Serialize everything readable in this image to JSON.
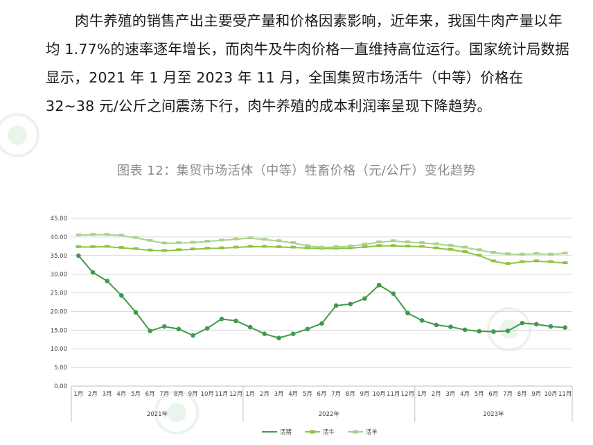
{
  "paragraph": "肉牛养殖的销售产出主要受产量和价格因素影响，近年来，我国牛肉产量以年均 1.77%的速率逐年增长，而肉牛及牛肉价格一直维持高位运行。国家统计局数据显示，2021 年 1 月至 2023 年 11 月，全国集贸市场活牛（中等）价格在 32~38 元/公斤之间震荡下行，肉牛养殖的成本利润率呈现下降趋势。",
  "chart_data": {
    "type": "line",
    "title": "图表 12：集贸市场活体（中等）牲畜价格（元/公斤）变化趋势",
    "ylim": [
      0,
      45
    ],
    "yticks": [
      "0.00",
      "5.00",
      "10.00",
      "15.00",
      "20.00",
      "25.00",
      "30.00",
      "35.00",
      "40.00",
      "45.00"
    ],
    "categories": [
      "1月",
      "2月",
      "3月",
      "4月",
      "5月",
      "6月",
      "7月",
      "8月",
      "9月",
      "10月",
      "11月",
      "12月",
      "1月",
      "2月",
      "3月",
      "4月",
      "5月",
      "6月",
      "7月",
      "8月",
      "9月",
      "10月",
      "11月",
      "12月",
      "1月",
      "2月",
      "3月",
      "4月",
      "5月",
      "6月",
      "7月",
      "8月",
      "9月",
      "10月",
      "11月"
    ],
    "year_groups": [
      {
        "label": "2021年",
        "count": 12
      },
      {
        "label": "2022年",
        "count": 12
      },
      {
        "label": "2023年",
        "count": 11
      }
    ],
    "legend_position": "bottom",
    "grid": true,
    "series": [
      {
        "name": "活猪",
        "color": "#3f9a4a",
        "values": [
          35.0,
          30.5,
          28.2,
          24.3,
          19.8,
          14.8,
          16.0,
          15.3,
          13.6,
          15.5,
          18.0,
          17.5,
          15.8,
          14.0,
          12.9,
          14.0,
          15.3,
          16.8,
          21.6,
          22.0,
          23.5,
          27.1,
          24.8,
          19.6,
          17.6,
          16.4,
          15.9,
          15.1,
          14.7,
          14.6,
          14.8,
          16.9,
          16.6,
          16.0,
          15.7
        ]
      },
      {
        "name": "活牛",
        "color": "#8cc63f",
        "values": [
          37.3,
          37.3,
          37.4,
          37.1,
          36.8,
          36.4,
          36.3,
          36.5,
          36.7,
          36.9,
          37.0,
          37.2,
          37.4,
          37.4,
          37.3,
          37.2,
          37.0,
          36.9,
          36.9,
          37.0,
          37.3,
          37.6,
          37.6,
          37.5,
          37.4,
          37.0,
          36.6,
          36.0,
          35.0,
          33.5,
          32.8,
          33.3,
          33.5,
          33.3,
          33.0
        ]
      },
      {
        "name": "活羊",
        "color": "#a9d18e",
        "values": [
          40.5,
          40.6,
          40.6,
          40.4,
          39.8,
          39.0,
          38.3,
          38.4,
          38.5,
          38.8,
          39.1,
          39.4,
          39.7,
          39.3,
          38.9,
          38.4,
          37.6,
          37.2,
          37.3,
          37.5,
          38.0,
          38.6,
          38.9,
          38.6,
          38.4,
          38.1,
          37.7,
          37.2,
          36.5,
          35.8,
          35.4,
          35.3,
          35.5,
          35.3,
          35.6
        ]
      }
    ]
  }
}
